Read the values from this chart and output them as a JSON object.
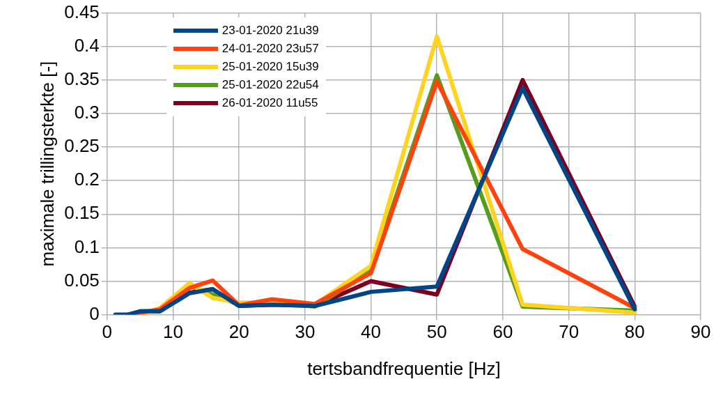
{
  "chart_data": {
    "type": "line",
    "xlabel": "tertsbandfrequentie [Hz]",
    "ylabel": "maximale trillingsterkte [-]",
    "x": [
      1.25,
      2.5,
      3.15,
      5,
      8,
      12.5,
      16,
      20,
      25,
      31.5,
      40,
      50,
      63,
      80
    ],
    "series": [
      {
        "name": "23-01-2020 21u39",
        "color": "#004586",
        "values": [
          0,
          0,
          0,
          0.005,
          0.005,
          0.032,
          0.038,
          0.013,
          0.015,
          0.013,
          0.034,
          0.042,
          0.338,
          0.008
        ]
      },
      {
        "name": "24-01-2020 23u57",
        "color": "#ff420e",
        "values": [
          null,
          null,
          0,
          0.003,
          0.008,
          0.04,
          0.051,
          0.014,
          0.023,
          0.016,
          0.062,
          0.348,
          0.098,
          0.01
        ]
      },
      {
        "name": "25-01-2020 15u39",
        "color": "#ffd320",
        "values": [
          null,
          null,
          0,
          0,
          0.01,
          0.047,
          0.025,
          0.018,
          0.018,
          0.015,
          0.073,
          0.415,
          0.015,
          0.003
        ]
      },
      {
        "name": "25-01-2020 22u54",
        "color": "#579d1c",
        "values": [
          null,
          null,
          null,
          null,
          0.008,
          0.043,
          0.03,
          0.015,
          0.018,
          0.012,
          0.065,
          0.357,
          0.012,
          0.006
        ]
      },
      {
        "name": "26-01-2020 11u55",
        "color": "#7e0021",
        "values": [
          null,
          null,
          0,
          0.005,
          0.005,
          0.033,
          0.038,
          0.013,
          0.015,
          0.013,
          0.05,
          0.03,
          0.35,
          0.012
        ]
      }
    ],
    "xlim": [
      0,
      90
    ],
    "xticks": [
      0,
      10,
      20,
      30,
      40,
      50,
      60,
      70,
      80,
      90
    ],
    "ylim": [
      0,
      0.45
    ],
    "yticks": [
      0,
      0.05,
      0.1,
      0.15,
      0.2,
      0.25,
      0.3,
      0.35,
      0.4,
      0.45
    ],
    "grid": true,
    "legend": "top left",
    "marker": "none",
    "line_style": "solid"
  }
}
